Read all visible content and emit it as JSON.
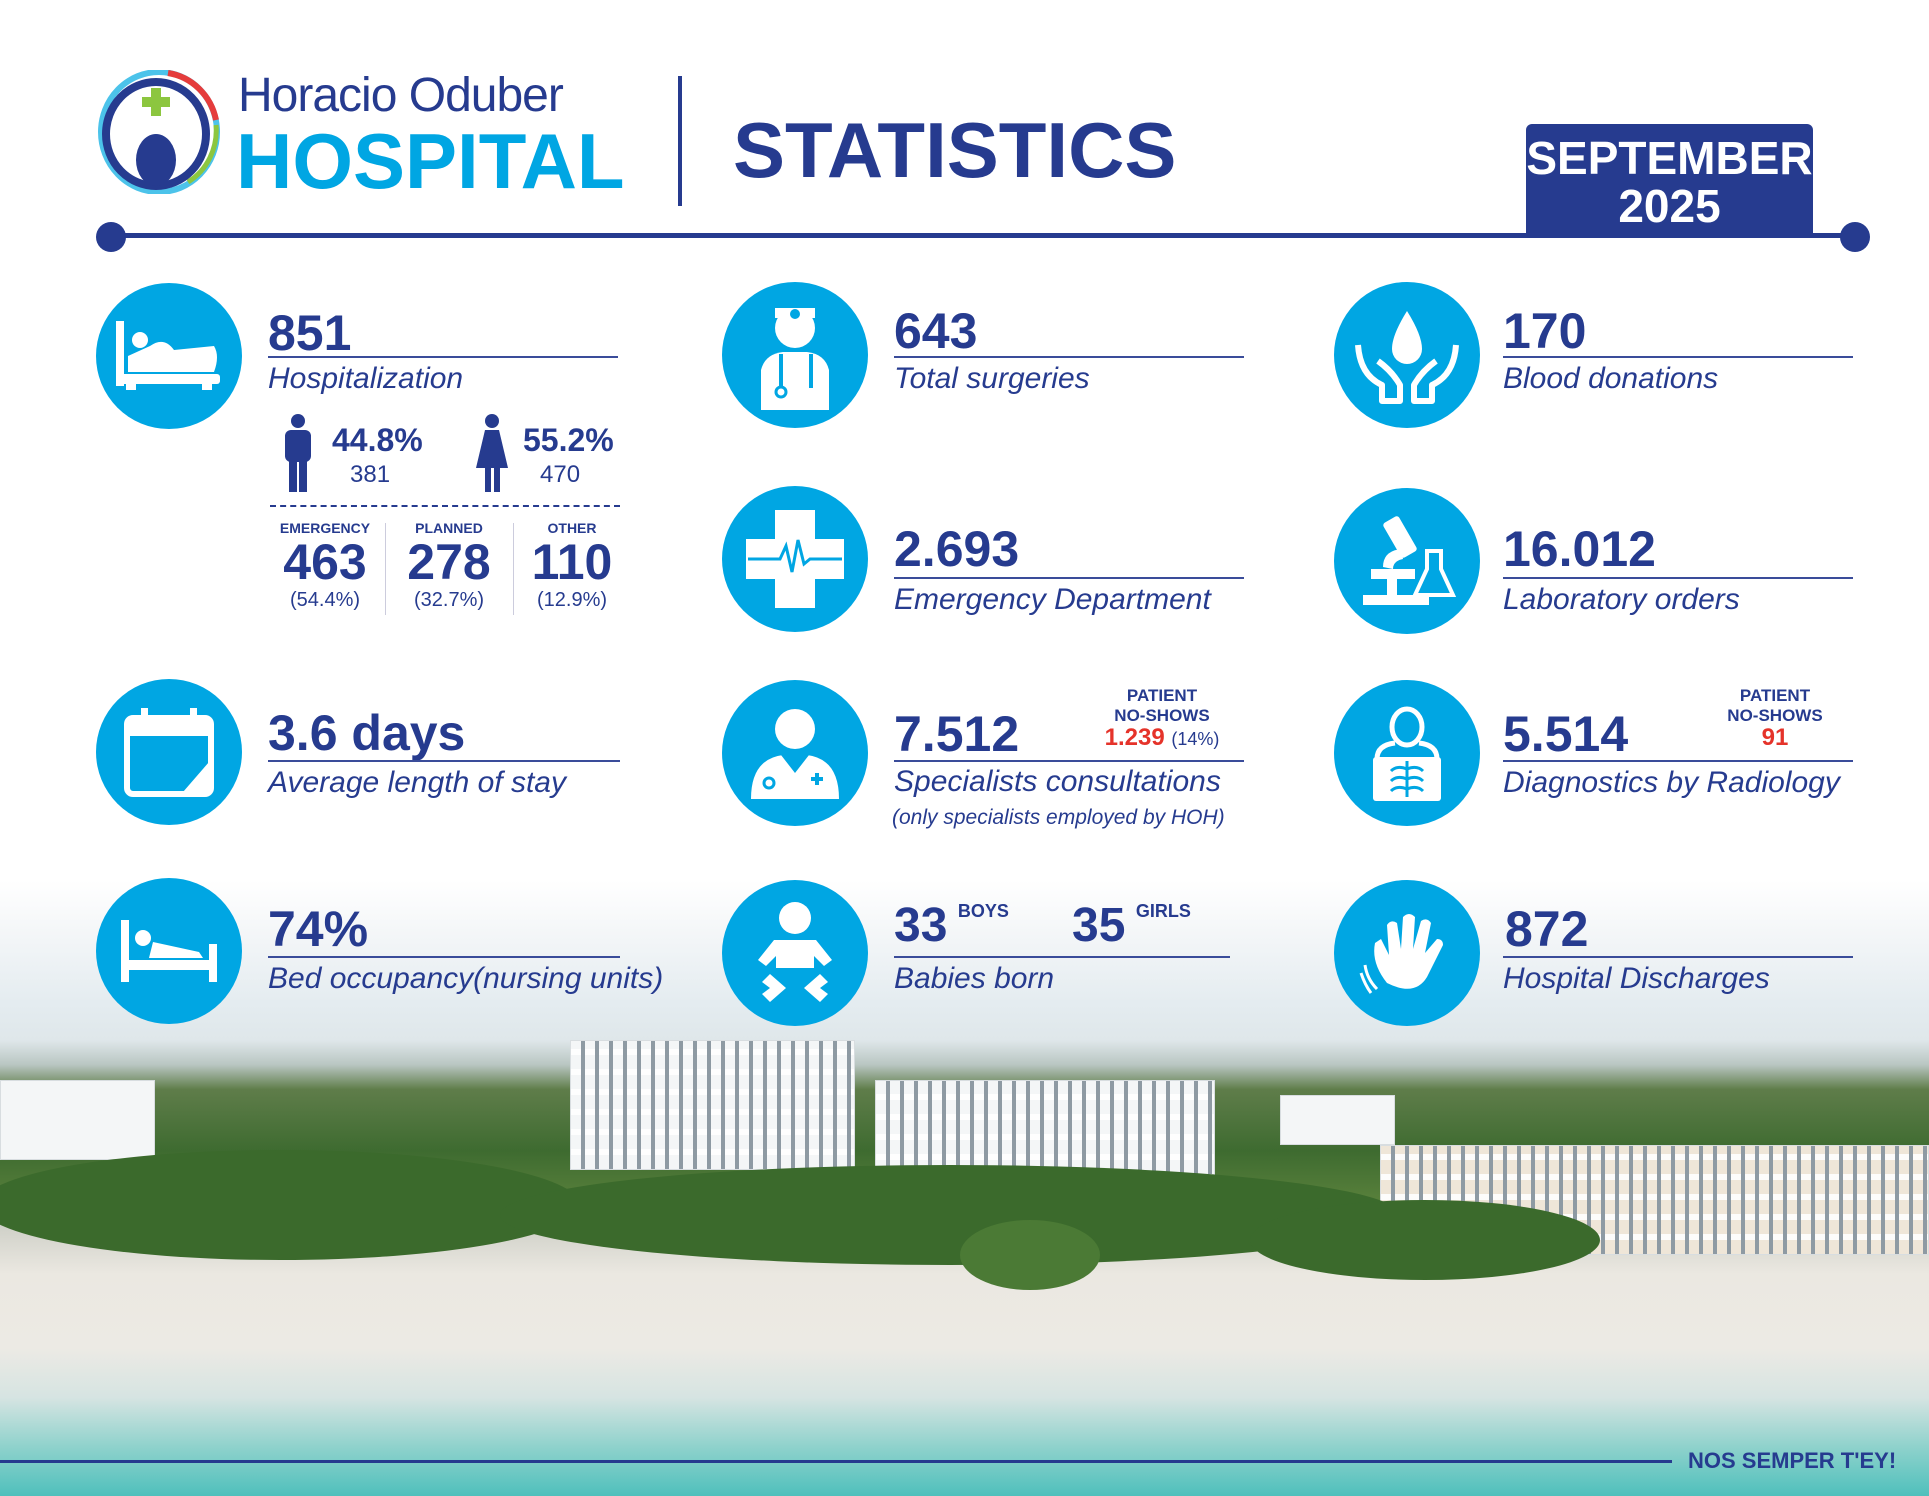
{
  "header": {
    "logo_line1": "Horacio Oduber",
    "logo_line2": "HOSPITAL",
    "title": "STATISTICS",
    "month": "SEPTEMBER",
    "year": "2025"
  },
  "hospitalization": {
    "value": "851",
    "label": "Hospitalization",
    "male_pct": "44.8%",
    "male_count": "381",
    "female_pct": "55.2%",
    "female_count": "470",
    "types": [
      {
        "label": "EMERGENCY",
        "value": "463",
        "pct": "(54.4%)"
      },
      {
        "label": "PLANNED",
        "value": "278",
        "pct": "(32.7%)"
      },
      {
        "label": "OTHER",
        "value": "110",
        "pct": "(12.9%)"
      }
    ]
  },
  "stay": {
    "value": "3.6 days",
    "label": "Average length of stay"
  },
  "occupancy": {
    "value": "74%",
    "label": "Bed occupancy(nursing units)"
  },
  "surgeries": {
    "value": "643",
    "label": "Total surgeries"
  },
  "emergency": {
    "value": "2.693",
    "label": "Emergency Department"
  },
  "specialists": {
    "value": "7.512",
    "label": "Specialists consultations",
    "note": "(only specialists employed by HOH)",
    "noshow_title1": "PATIENT",
    "noshow_title2": "NO-SHOWS",
    "noshow_value": "1.239",
    "noshow_pct": "(14%)"
  },
  "babies": {
    "boys": "33",
    "boys_label": "BOYS",
    "girls": "35",
    "girls_label": "GIRLS",
    "label": "Babies born"
  },
  "blood": {
    "value": "170",
    "label": "Blood donations"
  },
  "lab": {
    "value": "16.012",
    "label": "Laboratory orders"
  },
  "radiology": {
    "value": "5.514",
    "label": "Diagnostics by Radiology",
    "noshow_title1": "PATIENT",
    "noshow_title2": "NO-SHOWS",
    "noshow_value": "91"
  },
  "discharges": {
    "value": "872",
    "label": "Hospital Discharges"
  },
  "footer": {
    "motto": "NOS SEMPER T'EY!"
  },
  "colors": {
    "navy": "#263b8f",
    "cyan": "#00a6e3",
    "red": "#e5332a"
  }
}
